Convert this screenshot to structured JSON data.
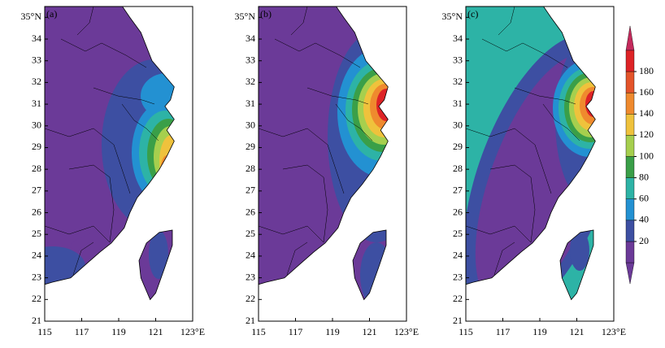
{
  "panels": [
    {
      "label": "(a)"
    },
    {
      "label": "(b)"
    },
    {
      "label": "(c)"
    }
  ],
  "lon_lim": [
    115,
    123
  ],
  "lat_lim": [
    21,
    35.5
  ],
  "lon_ticks": [
    115,
    117,
    119,
    121,
    {
      "value": 123,
      "label": "123°E"
    }
  ],
  "lat_ticks": [
    21,
    22,
    23,
    24,
    25,
    26,
    27,
    28,
    29,
    30,
    31,
    32,
    33,
    34,
    {
      "value": 35,
      "label": "35°N"
    }
  ],
  "colorbar": {
    "ticks": [
      20,
      40,
      60,
      80,
      100,
      120,
      140,
      160,
      180
    ],
    "colors": [
      "#6b3a98",
      "#3d4fa2",
      "#2391d2",
      "#2db3a6",
      "#3a9f48",
      "#a6cf4e",
      "#efc23c",
      "#ef8a2e",
      "#e4542a",
      "#de2326"
    ],
    "under_color": "#6b3a98",
    "over_color": "#c42a5c"
  }
}
